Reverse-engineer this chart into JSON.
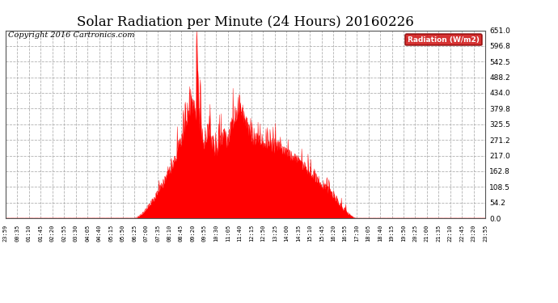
{
  "title": "Solar Radiation per Minute (24 Hours) 20160226",
  "copyright_text": "Copyright 2016 Cartronics.com",
  "legend_label": "Radiation (W/m2)",
  "ylabel_values": [
    0.0,
    54.2,
    108.5,
    162.8,
    217.0,
    271.2,
    325.5,
    379.8,
    434.0,
    488.2,
    542.5,
    596.8,
    651.0
  ],
  "ymax": 651.0,
  "ymin": 0.0,
  "fill_color": "#FF0000",
  "line_color": "#FF0000",
  "background_color": "#FFFFFF",
  "grid_color": "#AAAAAA",
  "title_fontsize": 12,
  "copyright_fontsize": 7,
  "legend_bg": "#CC0000",
  "legend_text_color": "#FFFFFF",
  "x_tick_labels": [
    "23:59",
    "00:35",
    "01:10",
    "01:45",
    "02:20",
    "02:55",
    "03:30",
    "04:05",
    "04:40",
    "05:15",
    "05:50",
    "06:25",
    "07:00",
    "07:35",
    "08:10",
    "08:45",
    "09:20",
    "09:55",
    "10:30",
    "11:05",
    "11:40",
    "12:15",
    "12:50",
    "13:25",
    "14:00",
    "14:35",
    "15:10",
    "15:45",
    "16:20",
    "16:55",
    "17:30",
    "18:05",
    "18:40",
    "19:15",
    "19:50",
    "20:25",
    "21:00",
    "21:35",
    "22:10",
    "22:45",
    "23:20",
    "23:55"
  ],
  "num_minutes": 1440,
  "sunrise_minute": 386,
  "sunset_minute": 1051,
  "peak_minute": 573,
  "peak_value": 651.0,
  "solar_noon_minute": 750
}
